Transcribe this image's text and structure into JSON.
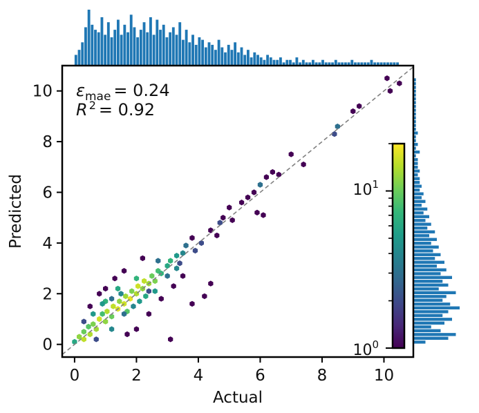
{
  "chart_data": {
    "type": "hexbin",
    "xlabel": "Actual",
    "ylabel": "Predicted",
    "xlim": [
      -0.4,
      10.95
    ],
    "ylim": [
      -0.5,
      11.0
    ],
    "x_ticks": [
      0,
      2,
      4,
      6,
      8,
      10
    ],
    "y_ticks": [
      0,
      2,
      4,
      6,
      8,
      10
    ],
    "grid": false,
    "reference_line": {
      "style": "dashed",
      "color": "#808080",
      "slope": 1,
      "intercept": 0
    },
    "annotations": {
      "mae_symbol": "ε",
      "mae_subscript": "mae",
      "mae_value": "= 0.24",
      "r2_symbol": "R",
      "r2_superscript": "2",
      "r2_value": "= 0.92"
    },
    "colorbar": {
      "scale": "log",
      "colormap": "viridis",
      "range": [
        1,
        20
      ],
      "tick_labels": [
        {
          "base": "10",
          "exp": "0",
          "value": 1
        },
        {
          "base": "10",
          "exp": "1",
          "value": 10
        }
      ],
      "colors": [
        "#440154",
        "#482878",
        "#3e4989",
        "#31688e",
        "#26828e",
        "#1f9e89",
        "#35b779",
        "#6ece58",
        "#b5de2b",
        "#fde725"
      ]
    },
    "hexbins": [
      {
        "x": 0.0,
        "y": 0.1,
        "count": 6
      },
      {
        "x": 0.15,
        "y": 0.3,
        "count": 12
      },
      {
        "x": 0.3,
        "y": 0.2,
        "count": 15
      },
      {
        "x": 0.3,
        "y": 0.5,
        "count": 10
      },
      {
        "x": 0.5,
        "y": 0.4,
        "count": 14
      },
      {
        "x": 0.45,
        "y": 0.7,
        "count": 9
      },
      {
        "x": 0.6,
        "y": 0.8,
        "count": 11
      },
      {
        "x": 0.7,
        "y": 0.6,
        "count": 13
      },
      {
        "x": 0.8,
        "y": 1.0,
        "count": 16
      },
      {
        "x": 0.9,
        "y": 1.2,
        "count": 8
      },
      {
        "x": 1.0,
        "y": 0.9,
        "count": 12
      },
      {
        "x": 1.05,
        "y": 1.3,
        "count": 14
      },
      {
        "x": 1.2,
        "y": 1.1,
        "count": 10
      },
      {
        "x": 1.25,
        "y": 1.5,
        "count": 15
      },
      {
        "x": 1.4,
        "y": 1.4,
        "count": 17
      },
      {
        "x": 1.45,
        "y": 1.7,
        "count": 12
      },
      {
        "x": 1.6,
        "y": 1.6,
        "count": 16
      },
      {
        "x": 1.65,
        "y": 1.9,
        "count": 13
      },
      {
        "x": 1.8,
        "y": 1.8,
        "count": 18
      },
      {
        "x": 1.85,
        "y": 2.1,
        "count": 11
      },
      {
        "x": 2.0,
        "y": 2.0,
        "count": 14
      },
      {
        "x": 2.05,
        "y": 2.3,
        "count": 16
      },
      {
        "x": 2.2,
        "y": 2.2,
        "count": 12
      },
      {
        "x": 2.25,
        "y": 2.5,
        "count": 15
      },
      {
        "x": 2.4,
        "y": 2.4,
        "count": 13
      },
      {
        "x": 2.5,
        "y": 2.7,
        "count": 10
      },
      {
        "x": 2.6,
        "y": 2.5,
        "count": 11
      },
      {
        "x": 2.7,
        "y": 2.9,
        "count": 8
      },
      {
        "x": 2.8,
        "y": 2.8,
        "count": 7
      },
      {
        "x": 3.0,
        "y": 3.1,
        "count": 6
      },
      {
        "x": 3.1,
        "y": 3.3,
        "count": 7
      },
      {
        "x": 3.3,
        "y": 3.5,
        "count": 5
      },
      {
        "x": 3.5,
        "y": 3.6,
        "count": 4
      },
      {
        "x": 1.0,
        "y": 1.7,
        "count": 7
      },
      {
        "x": 1.4,
        "y": 2.2,
        "count": 6
      },
      {
        "x": 1.7,
        "y": 1.3,
        "count": 9
      },
      {
        "x": 0.9,
        "y": 1.6,
        "count": 5
      },
      {
        "x": 2.3,
        "y": 1.9,
        "count": 6
      },
      {
        "x": 2.0,
        "y": 2.6,
        "count": 7
      },
      {
        "x": 0.6,
        "y": 1.2,
        "count": 5
      },
      {
        "x": 1.2,
        "y": 0.6,
        "count": 4
      },
      {
        "x": 2.6,
        "y": 2.1,
        "count": 5
      },
      {
        "x": 3.3,
        "y": 3.0,
        "count": 4
      },
      {
        "x": 3.6,
        "y": 3.9,
        "count": 3
      },
      {
        "x": 0.5,
        "y": 1.5,
        "count": 1
      },
      {
        "x": 0.8,
        "y": 2.0,
        "count": 1
      },
      {
        "x": 1.0,
        "y": 2.2,
        "count": 1
      },
      {
        "x": 1.3,
        "y": 2.6,
        "count": 1
      },
      {
        "x": 1.6,
        "y": 2.9,
        "count": 1
      },
      {
        "x": 1.7,
        "y": 0.4,
        "count": 1
      },
      {
        "x": 2.0,
        "y": 0.6,
        "count": 1
      },
      {
        "x": 2.4,
        "y": 1.2,
        "count": 1
      },
      {
        "x": 2.2,
        "y": 3.4,
        "count": 1
      },
      {
        "x": 2.8,
        "y": 1.8,
        "count": 1
      },
      {
        "x": 3.2,
        "y": 2.3,
        "count": 1
      },
      {
        "x": 3.5,
        "y": 2.7,
        "count": 1
      },
      {
        "x": 3.1,
        "y": 0.2,
        "count": 1
      },
      {
        "x": 3.8,
        "y": 1.6,
        "count": 1
      },
      {
        "x": 4.4,
        "y": 2.4,
        "count": 1
      },
      {
        "x": 4.2,
        "y": 1.9,
        "count": 1
      },
      {
        "x": 3.8,
        "y": 4.2,
        "count": 1
      },
      {
        "x": 4.1,
        "y": 4.0,
        "count": 2
      },
      {
        "x": 4.4,
        "y": 4.5,
        "count": 1
      },
      {
        "x": 4.6,
        "y": 4.3,
        "count": 1
      },
      {
        "x": 4.7,
        "y": 4.8,
        "count": 2
      },
      {
        "x": 4.8,
        "y": 5.0,
        "count": 1
      },
      {
        "x": 5.0,
        "y": 5.4,
        "count": 1
      },
      {
        "x": 5.1,
        "y": 4.9,
        "count": 1
      },
      {
        "x": 5.4,
        "y": 5.6,
        "count": 1
      },
      {
        "x": 5.6,
        "y": 5.8,
        "count": 1
      },
      {
        "x": 5.8,
        "y": 6.0,
        "count": 1
      },
      {
        "x": 5.9,
        "y": 5.2,
        "count": 1
      },
      {
        "x": 6.0,
        "y": 6.3,
        "count": 3
      },
      {
        "x": 6.2,
        "y": 6.6,
        "count": 1
      },
      {
        "x": 6.1,
        "y": 5.1,
        "count": 1
      },
      {
        "x": 6.4,
        "y": 6.8,
        "count": 1
      },
      {
        "x": 6.6,
        "y": 6.7,
        "count": 1
      },
      {
        "x": 7.0,
        "y": 7.5,
        "count": 1
      },
      {
        "x": 7.4,
        "y": 7.1,
        "count": 1
      },
      {
        "x": 8.4,
        "y": 8.3,
        "count": 2
      },
      {
        "x": 8.5,
        "y": 8.6,
        "count": 3
      },
      {
        "x": 9.0,
        "y": 9.2,
        "count": 1
      },
      {
        "x": 10.1,
        "y": 10.5,
        "count": 1
      },
      {
        "x": 10.2,
        "y": 10.0,
        "count": 1
      },
      {
        "x": 10.5,
        "y": 10.3,
        "count": 1
      },
      {
        "x": 9.2,
        "y": 9.4,
        "count": 1
      },
      {
        "x": 2.4,
        "y": 2.1,
        "count": 2
      },
      {
        "x": 1.6,
        "y": 1.2,
        "count": 3
      },
      {
        "x": 1.2,
        "y": 1.8,
        "count": 3
      },
      {
        "x": 0.7,
        "y": 0.2,
        "count": 2
      },
      {
        "x": 0.3,
        "y": 0.9,
        "count": 2
      },
      {
        "x": 1.9,
        "y": 1.5,
        "count": 4
      },
      {
        "x": 2.7,
        "y": 3.3,
        "count": 3
      },
      {
        "x": 3.0,
        "y": 2.7,
        "count": 3
      },
      {
        "x": 3.4,
        "y": 3.2,
        "count": 2
      },
      {
        "x": 3.9,
        "y": 3.7,
        "count": 2
      },
      {
        "x": 2.1,
        "y": 1.7,
        "count": 5
      },
      {
        "x": 1.5,
        "y": 2.0,
        "count": 4
      }
    ],
    "top_histogram": {
      "bin_range": [
        0.0,
        10.5
      ],
      "counts": [
        4,
        6,
        9,
        15,
        22,
        16,
        14,
        13,
        19,
        12,
        17,
        11,
        14,
        18,
        12,
        16,
        13,
        20,
        15,
        11,
        14,
        17,
        13,
        19,
        12,
        18,
        14,
        16,
        11,
        13,
        15,
        12,
        17,
        10,
        14,
        9,
        12,
        8,
        11,
        10,
        7,
        9,
        8,
        6,
        10,
        7,
        5,
        8,
        6,
        9,
        5,
        7,
        4,
        6,
        3,
        5,
        4,
        3,
        2,
        4,
        3,
        2,
        2,
        3,
        1,
        2,
        2,
        1,
        3,
        1,
        2,
        1,
        1,
        2,
        1,
        1,
        2,
        1,
        1,
        1,
        2,
        1,
        1,
        1,
        1,
        2,
        1,
        1,
        1,
        1,
        1,
        2,
        1,
        1,
        1,
        1,
        1,
        1,
        1,
        1
      ]
    },
    "right_histogram": {
      "bin_range": [
        0.0,
        10.5
      ],
      "counts": [
        6,
        18,
        22,
        14,
        9,
        16,
        20,
        15,
        18,
        24,
        19,
        15,
        17,
        22,
        13,
        18,
        15,
        20,
        14,
        17,
        12,
        16,
        11,
        14,
        10,
        13,
        9,
        12,
        8,
        11,
        7,
        9,
        6,
        8,
        5,
        7,
        4,
        6,
        4,
        5,
        3,
        4,
        3,
        3,
        2,
        3,
        2,
        2,
        2,
        1,
        3,
        1,
        2,
        1,
        1,
        2,
        1,
        1,
        1,
        1,
        1,
        1,
        1,
        1,
        1,
        1,
        1,
        1,
        1,
        1
      ]
    }
  }
}
